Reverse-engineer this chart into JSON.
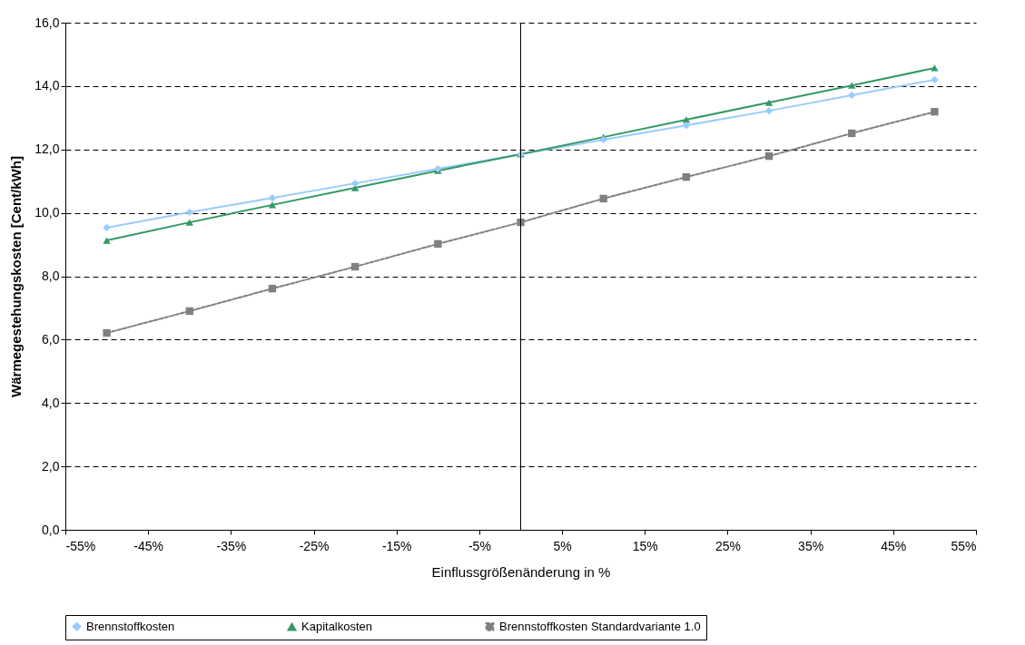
{
  "chart_data": {
    "type": "line",
    "xlabel": "Einflussgrößenänderung  in %",
    "ylabel": "Wärmegestehungskosten [Cent/kWh]",
    "x": [
      -50,
      -40,
      -30,
      -20,
      -10,
      0,
      10,
      20,
      30,
      40,
      50
    ],
    "series": [
      {
        "name": "Brennstoffkosten",
        "color": "#99ccff",
        "marker": "diamond",
        "line_style": "solid",
        "values": [
          9.53,
          10.02,
          10.47,
          10.93,
          11.39,
          11.85,
          12.31,
          12.76,
          13.22,
          13.71,
          14.2
        ]
      },
      {
        "name": "Kapitalkosten",
        "color": "#339966",
        "marker": "triangle",
        "line_style": "solid",
        "values": [
          9.13,
          9.7,
          10.25,
          10.79,
          11.33,
          11.85,
          12.39,
          12.94,
          13.48,
          14.02,
          14.57
        ]
      },
      {
        "name": "Brennstoffkosten Standardvariante 1.0",
        "color": "#808080",
        "marker": "square",
        "line_style": "dashed",
        "values": [
          6.21,
          6.9,
          7.61,
          8.3,
          9.02,
          9.7,
          10.45,
          11.13,
          11.79,
          12.51,
          13.19
        ]
      }
    ],
    "xlim": [
      -55,
      55
    ],
    "xticks": [
      {
        "value": -55,
        "label": "-55%"
      },
      {
        "value": -45,
        "label": "-45%"
      },
      {
        "value": -35,
        "label": "-35%"
      },
      {
        "value": -25,
        "label": "-25%"
      },
      {
        "value": -15,
        "label": "-15%"
      },
      {
        "value": -5,
        "label": "-5%"
      },
      {
        "value": 5,
        "label": "5%"
      },
      {
        "value": 15,
        "label": "15%"
      },
      {
        "value": 25,
        "label": "25%"
      },
      {
        "value": 35,
        "label": "35%"
      },
      {
        "value": 45,
        "label": "45%"
      },
      {
        "value": 55,
        "label": "55%"
      }
    ],
    "ylim": [
      0,
      16
    ],
    "yticks": [
      {
        "value": 0,
        "label": "0,0"
      },
      {
        "value": 2,
        "label": "2,0"
      },
      {
        "value": 4,
        "label": "4,0"
      },
      {
        "value": 6,
        "label": "6,0"
      },
      {
        "value": 8,
        "label": "8,0"
      },
      {
        "value": 10,
        "label": "10,0"
      },
      {
        "value": 12,
        "label": "12,0"
      },
      {
        "value": 14,
        "label": "14,0"
      },
      {
        "value": 16,
        "label": "16,0"
      }
    ],
    "ref_lines": [
      {
        "axis": "x",
        "value": 0,
        "color": "#000000",
        "line_style": "solid"
      }
    ],
    "grid": "y",
    "legend": "bottom"
  }
}
